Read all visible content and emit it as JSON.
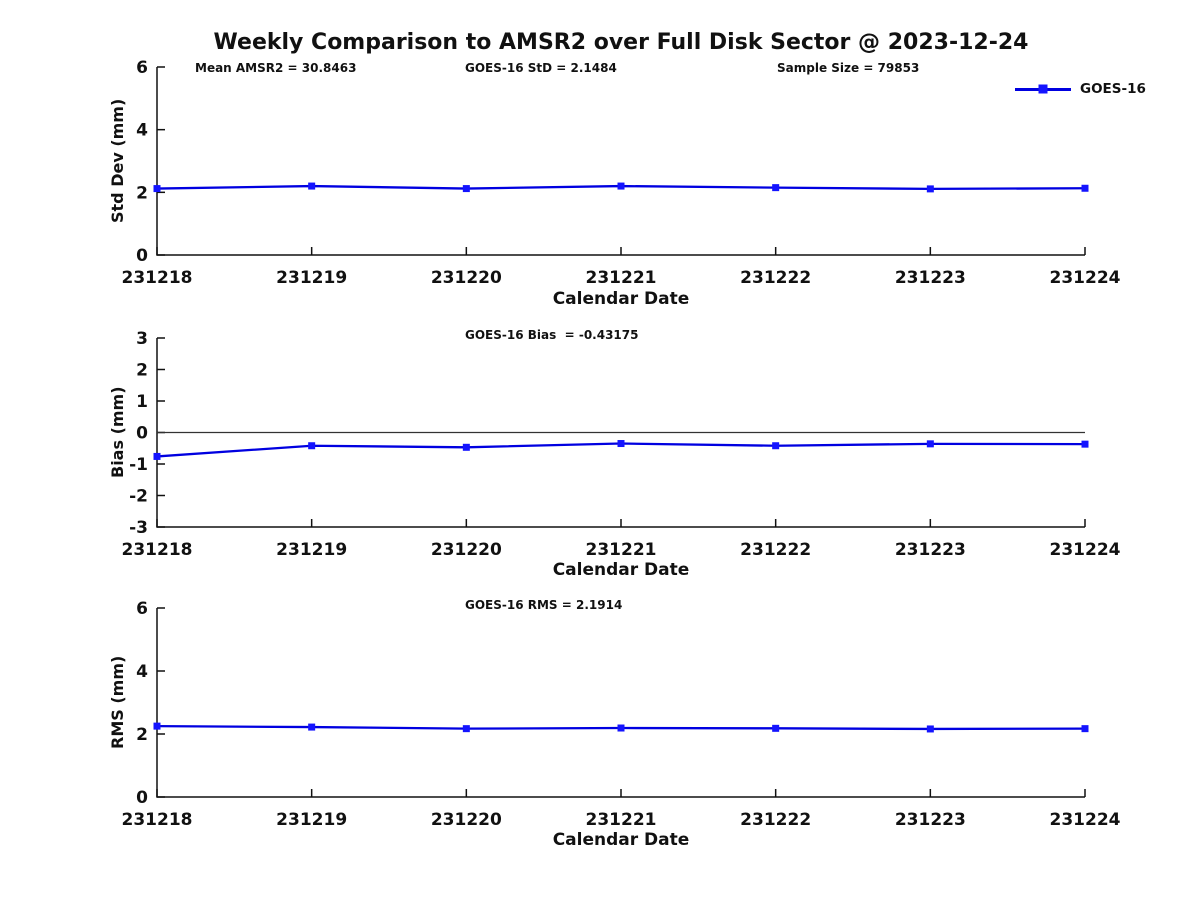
{
  "title": "Weekly Comparison to AMSR2 over Full Disk Sector @ 2023-12-24",
  "legend": {
    "label": "GOES-16",
    "position": "top-right",
    "line_color": "#0000e0",
    "marker_color": "#1414ff"
  },
  "colors": {
    "axis": "#111111",
    "text": "#111111",
    "zero_line": "#333333",
    "background": "#ffffff"
  },
  "chart_data": [
    {
      "type": "line",
      "name": "std-dev-panel",
      "ylabel": "Std Dev (mm)",
      "xlabel": "Calendar Date",
      "ylim": [
        0,
        6
      ],
      "yticks": [
        0,
        2,
        4,
        6
      ],
      "grid": false,
      "categories": [
        "231218",
        "231219",
        "231220",
        "231221",
        "231222",
        "231223",
        "231224"
      ],
      "series": [
        {
          "name": "GOES-16",
          "values": [
            2.12,
            2.2,
            2.12,
            2.2,
            2.15,
            2.11,
            2.13
          ]
        }
      ],
      "annotations": [
        "Mean AMSR2 = 30.8463",
        "GOES-16 StD = 2.1484",
        "Sample Size = 79853"
      ]
    },
    {
      "type": "line",
      "name": "bias-panel",
      "ylabel": "Bias (mm)",
      "xlabel": "Calendar Date",
      "ylim": [
        -3,
        3
      ],
      "yticks": [
        -3,
        -2,
        -1,
        0,
        1,
        2,
        3
      ],
      "zero_line": true,
      "grid": false,
      "categories": [
        "231218",
        "231219",
        "231220",
        "231221",
        "231222",
        "231223",
        "231224"
      ],
      "series": [
        {
          "name": "GOES-16",
          "values": [
            -0.76,
            -0.42,
            -0.47,
            -0.35,
            -0.42,
            -0.36,
            -0.37
          ]
        }
      ],
      "annotations": [
        "GOES-16 Bias  = -0.43175"
      ]
    },
    {
      "type": "line",
      "name": "rms-panel",
      "ylabel": "RMS (mm)",
      "xlabel": "Calendar Date",
      "ylim": [
        0,
        6
      ],
      "yticks": [
        0,
        2,
        4,
        6
      ],
      "grid": false,
      "categories": [
        "231218",
        "231219",
        "231220",
        "231221",
        "231222",
        "231223",
        "231224"
      ],
      "series": [
        {
          "name": "GOES-16",
          "values": [
            2.25,
            2.22,
            2.17,
            2.19,
            2.18,
            2.16,
            2.17
          ]
        }
      ],
      "annotations": [
        "GOES-16 RMS = 2.1914"
      ]
    }
  ]
}
